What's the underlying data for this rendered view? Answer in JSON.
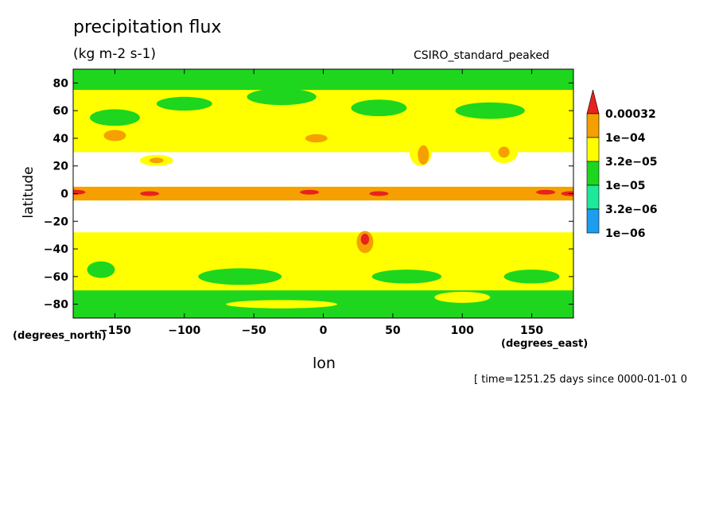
{
  "chart_data": {
    "type": "heatmap",
    "title": "precipitation flux",
    "units": "(kg m-2 s-1)",
    "source_label": "CSIRO_standard_peaked",
    "xlabel": "lon",
    "ylabel": "latitude",
    "x_units": "(degrees_east)",
    "y_units": "(degrees_north)",
    "timestamp": "[ time=1251.25 days since 0000-01-01 0",
    "xlim": [
      -180,
      180
    ],
    "ylim": [
      -90,
      90
    ],
    "x_ticks": [
      -150,
      -100,
      -50,
      0,
      50,
      100,
      150
    ],
    "y_ticks": [
      -80,
      -60,
      -40,
      -20,
      0,
      20,
      40,
      60,
      80
    ],
    "legend": {
      "placement": "right",
      "levels": [
        "0.00032",
        "1e-04",
        "3.2e-05",
        "1e-05",
        "3.2e-06",
        "1e-06"
      ],
      "colors": [
        "#e8221e",
        "#f5a000",
        "#ffff00",
        "#1ed61e",
        "#1ee89a",
        "#1e9cf0"
      ]
    },
    "colors": {
      "above_max": "#e8221e",
      "below_min": "#ffffff"
    },
    "fields": [
      {
        "lon": [
          -180,
          180
        ],
        "lat": [
          -5,
          5
        ],
        "level": "1e-04"
      },
      {
        "lon": [
          -180,
          180
        ],
        "lat": [
          5,
          30
        ],
        "level": "below-min"
      },
      {
        "lon": [
          -180,
          180
        ],
        "lat": [
          -28,
          -5
        ],
        "level": "below-min"
      },
      {
        "lon": [
          -180,
          180
        ],
        "lat": [
          75,
          90
        ],
        "level": "1e-05"
      },
      {
        "lon": [
          -180,
          180
        ],
        "lat": [
          -90,
          -70
        ],
        "level": "1e-05"
      }
    ]
  }
}
